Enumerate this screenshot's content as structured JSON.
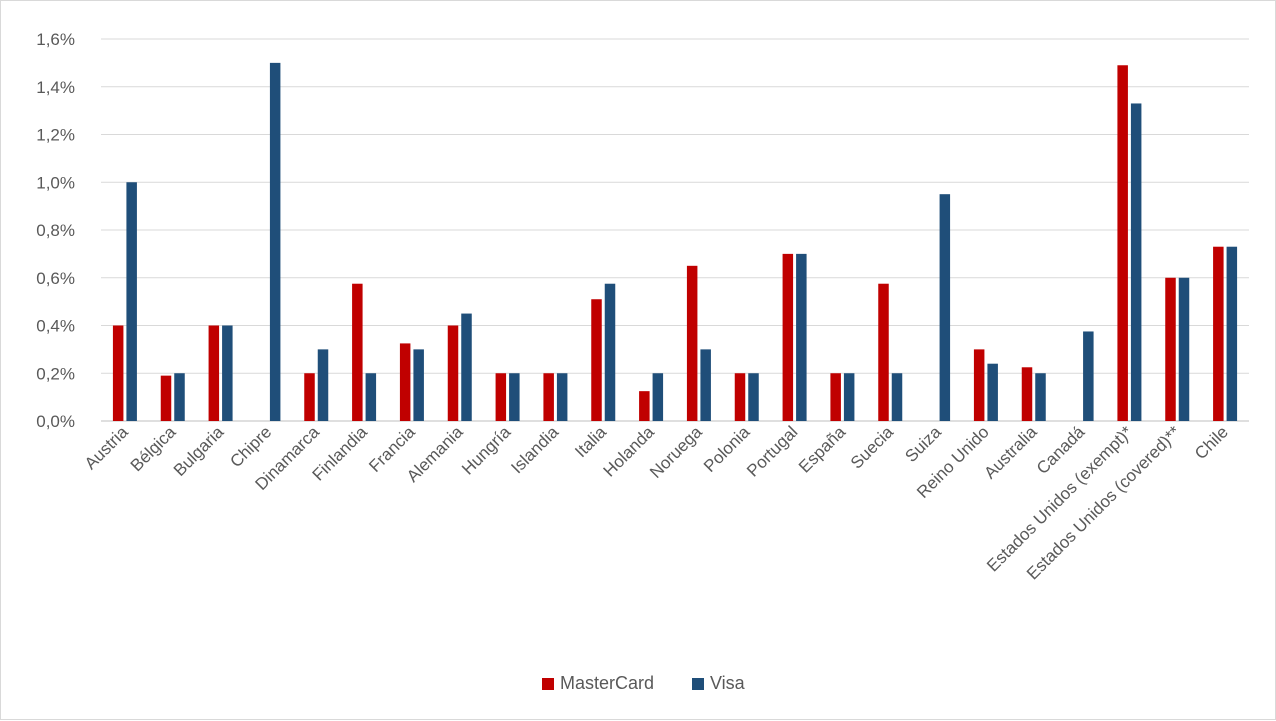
{
  "chart_data": {
    "type": "bar",
    "title": "",
    "xlabel": "",
    "ylabel": "",
    "ylim": [
      0,
      1.6
    ],
    "y_tick_step": 0.2,
    "y_tick_format": "percent-comma-1",
    "grid": true,
    "legend_position": "bottom",
    "categories": [
      "Austria",
      "Bélgica",
      "Bulgaria",
      "Chipre",
      "Dinamarca",
      "Finlandia",
      "Francia",
      "Alemania",
      "Hungría",
      "Islandia",
      "Italia",
      "Holanda",
      "Noruega",
      "Polonia",
      "Portugal",
      "España",
      "Suecia",
      "Suiza",
      "Reino Unido",
      "Australia",
      "Canadá",
      "Estados Unidos (exempt)*",
      "Estados Unidos (covered)**",
      "Chile"
    ],
    "series": [
      {
        "name": "MasterCard",
        "color": "#c00000",
        "values": [
          0.4,
          0.19,
          0.4,
          null,
          0.2,
          0.575,
          0.325,
          0.4,
          0.2,
          0.2,
          0.51,
          0.125,
          0.65,
          0.2,
          0.7,
          0.2,
          0.575,
          null,
          0.3,
          0.225,
          null,
          1.49,
          0.6,
          0.73
        ]
      },
      {
        "name": "Visa",
        "color": "#1f4e79",
        "values": [
          1.0,
          0.2,
          0.4,
          1.5,
          0.3,
          0.2,
          0.3,
          0.45,
          0.2,
          0.2,
          0.575,
          0.2,
          0.3,
          0.2,
          0.7,
          0.2,
          0.2,
          0.95,
          0.24,
          0.2,
          0.375,
          1.33,
          0.6,
          0.73
        ]
      }
    ],
    "y_tick_labels": [
      "0,0%",
      "0,2%",
      "0,4%",
      "0,6%",
      "0,8%",
      "1,0%",
      "1,2%",
      "1,4%",
      "1,6%"
    ]
  }
}
